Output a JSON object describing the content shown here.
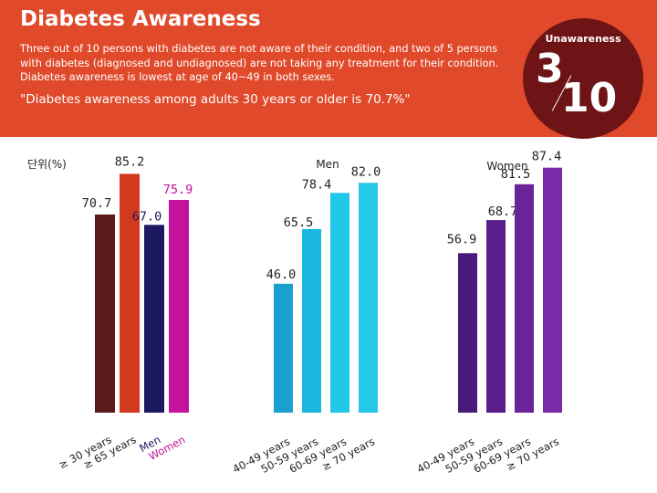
{
  "header": {
    "title": "Diabetes Awareness",
    "description": "Three out of 10 persons with diabetes are not aware of their condition, and two of 5 persons with diabetes (diagnosed and undiagnosed) are not taking any treatment for their condition. Diabetes awareness is lowest at age of 40~49 in both sexes.",
    "quote": "\"Diabetes awareness among adults 30 years or older is 70.7%\""
  },
  "badge": {
    "label": "Unawareness",
    "numerator": "3",
    "denominator": "10"
  },
  "unit_label": "단위(%)",
  "colors": {
    "header_bg": "#e04a2b",
    "badge_bg": "#6e1316"
  },
  "chart_data": [
    {
      "type": "bar",
      "title": "",
      "categories": [
        "≥ 30 years",
        "≥ 65 years",
        "Men",
        "Women"
      ],
      "values": [
        70.7,
        85.2,
        67.0,
        75.9
      ],
      "value_labels": [
        "70.7",
        "85.2",
        "67.0",
        "75.9"
      ],
      "colors": [
        "#5a1a1a",
        "#d23a1e",
        "#1d1960",
        "#c4129c"
      ],
      "label_colors": [
        "#222222",
        "#222222",
        "#1d1960",
        "#c4129c"
      ],
      "ylim": [
        0,
        100
      ]
    },
    {
      "type": "bar",
      "title": "Men",
      "categories": [
        "40-49 years",
        "50-59 years",
        "60-69 years",
        "≥ 70 years"
      ],
      "values": [
        46.0,
        65.5,
        78.4,
        82.0
      ],
      "value_labels": [
        "46.0",
        "65.5",
        "78.4",
        "82.0"
      ],
      "colors": [
        "#1a9fcf",
        "#1ab7e0",
        "#22c8ea",
        "#25c8e6"
      ],
      "label_colors": [
        "#222222",
        "#222222",
        "#222222",
        "#222222"
      ],
      "ylim": [
        0,
        100
      ]
    },
    {
      "type": "bar",
      "title": "Women",
      "categories": [
        "40-49 years",
        "50-59 years",
        "60-69 years",
        "≥ 70 years"
      ],
      "values": [
        56.9,
        68.7,
        81.5,
        87.4
      ],
      "value_labels": [
        "56.9",
        "68.7",
        "81.5",
        "87.4"
      ],
      "colors": [
        "#4a1a7a",
        "#5a1e8a",
        "#6a2399",
        "#7a2aa8"
      ],
      "label_colors": [
        "#222222",
        "#222222",
        "#222222",
        "#222222"
      ],
      "ylim": [
        0,
        100
      ]
    }
  ]
}
